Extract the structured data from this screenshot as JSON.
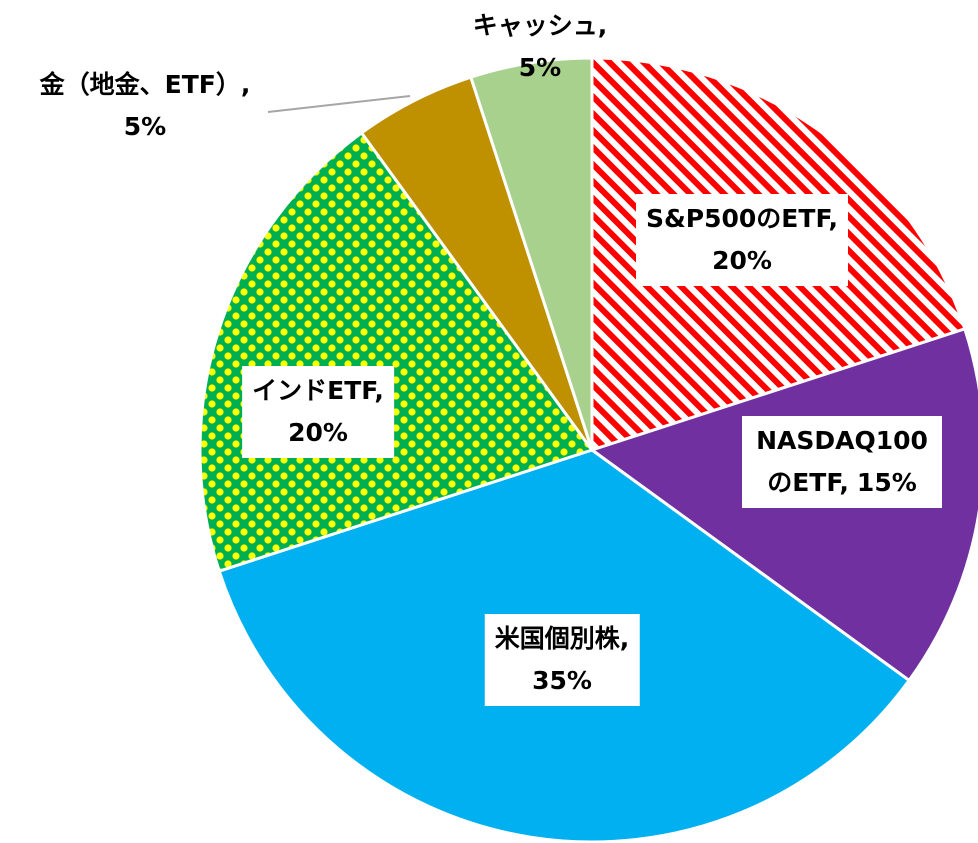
{
  "chart_data": {
    "type": "pie",
    "categories": [
      "S&P500のETF,",
      "NASDAQ100のETF,",
      "米国個別株,",
      "インドETF,",
      "金（地金、ETF）,",
      "キャッシュ,"
    ],
    "values": [
      20,
      15,
      35,
      20,
      5,
      5
    ],
    "value_labels": [
      "20%",
      "15%",
      "35%",
      "20%",
      "5%",
      "5%"
    ],
    "colors": [
      "#ff0000",
      "#7030a0",
      "#00b0f0",
      "#00b050",
      "#bf9000",
      "#a9d18e"
    ],
    "patterns": [
      "stripes",
      null,
      null,
      "dots",
      null,
      null
    ]
  }
}
